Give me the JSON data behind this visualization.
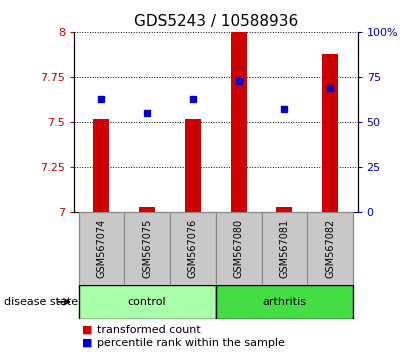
{
  "title": "GDS5243 / 10588936",
  "samples": [
    "GSM567074",
    "GSM567075",
    "GSM567076",
    "GSM567080",
    "GSM567081",
    "GSM567082"
  ],
  "transformed_counts": [
    7.52,
    7.03,
    7.52,
    8.0,
    7.03,
    7.88
  ],
  "percentile_ranks": [
    63,
    55,
    63,
    73,
    57,
    69
  ],
  "bar_baseline": 7.0,
  "ylim_left": [
    7.0,
    8.0
  ],
  "ylim_right": [
    0,
    100
  ],
  "yticks_left": [
    7.0,
    7.25,
    7.5,
    7.75,
    8.0
  ],
  "ytick_labels_left": [
    "7",
    "7.25",
    "7.5",
    "7.75",
    "8"
  ],
  "yticks_right": [
    0,
    25,
    50,
    75,
    100
  ],
  "ytick_labels_right": [
    "0",
    "25",
    "50",
    "75",
    "100%"
  ],
  "bar_color": "#cc0000",
  "dot_color": "#0000cc",
  "bar_width": 0.35,
  "disease_groups": [
    {
      "label": "control",
      "indices": [
        0,
        1,
        2
      ],
      "color": "#aaffaa"
    },
    {
      "label": "arthritis",
      "indices": [
        3,
        4,
        5
      ],
      "color": "#44dd44"
    }
  ],
  "disease_state_label": "disease state",
  "legend_red_label": "transformed count",
  "legend_blue_label": "percentile rank within the sample",
  "grid_color": "black",
  "grid_linestyle": "dotted",
  "tick_label_color_left": "#cc0000",
  "tick_label_color_right": "#0000cc",
  "bg_plot": "white",
  "bg_sample_box": "#c8c8c8",
  "title_fontsize": 11,
  "tick_fontsize": 8,
  "label_fontsize": 8,
  "sample_label_fontsize": 7
}
